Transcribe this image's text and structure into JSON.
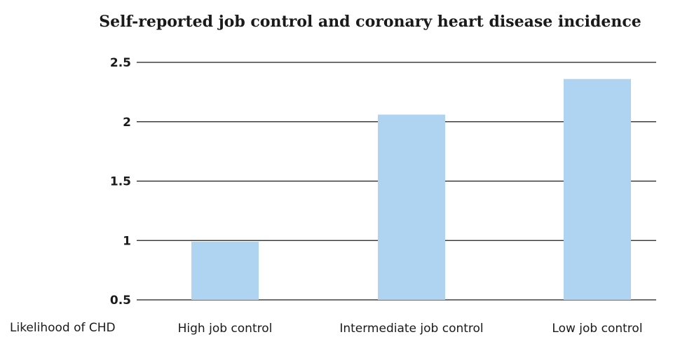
{
  "chart_data": {
    "type": "bar",
    "title": "Self-reported job control and coronary heart disease incidence",
    "ylabel": "Likelihood of CHD",
    "categories": [
      "High job control",
      "Intermediate job control",
      "Low job control"
    ],
    "values": [
      0.99,
      2.06,
      2.36
    ],
    "ylim": [
      0.5,
      2.5
    ],
    "yticks": [
      "0.5",
      "1",
      "1.5",
      "2",
      "2.5"
    ],
    "grid": true,
    "bar_color": "#aed4f2"
  }
}
